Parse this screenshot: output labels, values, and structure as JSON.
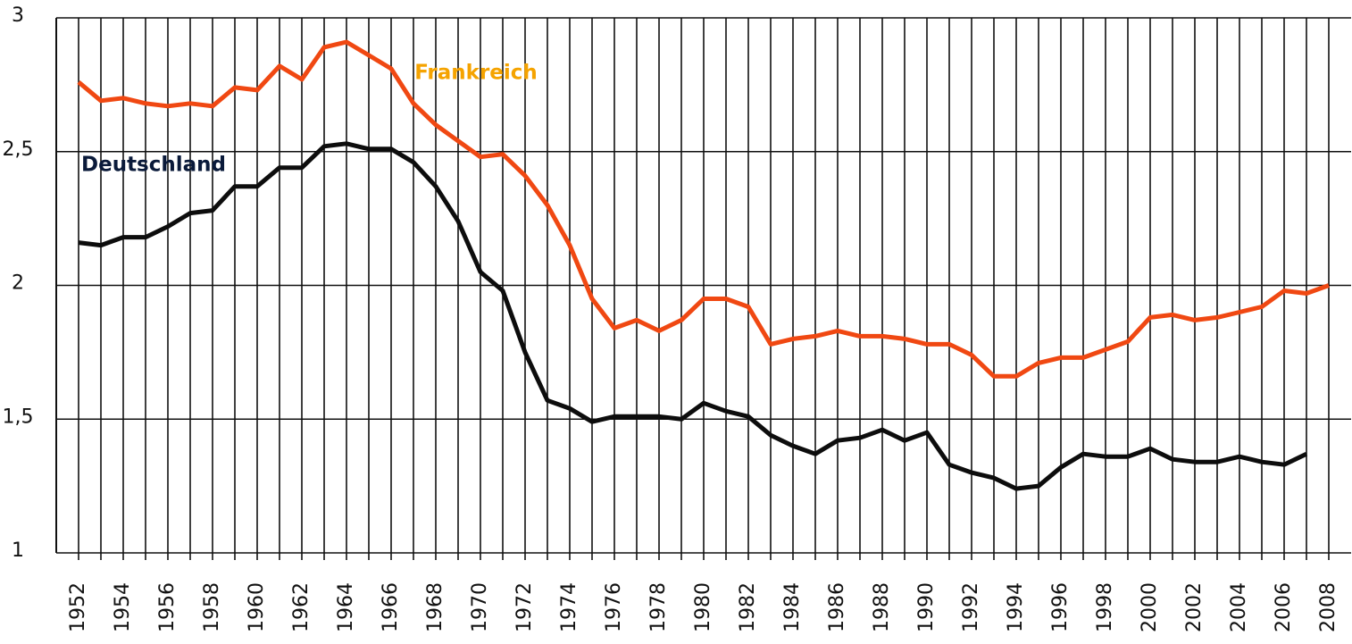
{
  "chart_data": {
    "type": "line",
    "x": [
      1952,
      1953,
      1954,
      1955,
      1956,
      1957,
      1958,
      1959,
      1960,
      1961,
      1962,
      1963,
      1964,
      1965,
      1966,
      1967,
      1968,
      1969,
      1970,
      1971,
      1972,
      1973,
      1974,
      1975,
      1976,
      1977,
      1978,
      1979,
      1980,
      1981,
      1982,
      1983,
      1984,
      1985,
      1986,
      1987,
      1988,
      1989,
      1990,
      1991,
      1992,
      1993,
      1994,
      1995,
      1996,
      1997,
      1998,
      1999,
      2000,
      2001,
      2002,
      2003,
      2004,
      2005,
      2006,
      2007,
      2008
    ],
    "series": [
      {
        "name": "Frankreich",
        "color": "#f04812",
        "label_color": "#f5a300",
        "values": [
          2.76,
          2.69,
          2.7,
          2.68,
          2.67,
          2.68,
          2.67,
          2.74,
          2.73,
          2.82,
          2.77,
          2.89,
          2.91,
          2.86,
          2.81,
          2.68,
          2.6,
          2.54,
          2.48,
          2.49,
          2.41,
          2.3,
          2.15,
          1.95,
          1.84,
          1.87,
          1.83,
          1.87,
          1.95,
          1.95,
          1.92,
          1.78,
          1.8,
          1.81,
          1.83,
          1.81,
          1.81,
          1.8,
          1.78,
          1.78,
          1.74,
          1.66,
          1.66,
          1.71,
          1.73,
          1.73,
          1.76,
          1.79,
          1.88,
          1.89,
          1.87,
          1.88,
          1.9,
          1.92,
          1.98,
          1.97,
          2.0
        ]
      },
      {
        "name": "Deutschland",
        "color": "#0d0d0d",
        "label_color": "#0a1a3a",
        "values": [
          2.16,
          2.15,
          2.18,
          2.18,
          2.22,
          2.27,
          2.28,
          2.37,
          2.37,
          2.44,
          2.44,
          2.52,
          2.53,
          2.51,
          2.51,
          2.46,
          2.37,
          2.24,
          2.05,
          1.98,
          1.75,
          1.57,
          1.54,
          1.49,
          1.51,
          1.51,
          1.51,
          1.5,
          1.56,
          1.53,
          1.51,
          1.44,
          1.4,
          1.37,
          1.42,
          1.43,
          1.46,
          1.42,
          1.45,
          1.33,
          1.3,
          1.28,
          1.24,
          1.25,
          1.32,
          1.37,
          1.36,
          1.36,
          1.39,
          1.35,
          1.34,
          1.34,
          1.36,
          1.34,
          1.33,
          1.37,
          null
        ]
      }
    ],
    "xlim": [
      1951,
      2009
    ],
    "xticks": [
      1952,
      1954,
      1956,
      1958,
      1960,
      1962,
      1964,
      1966,
      1968,
      1970,
      1972,
      1974,
      1976,
      1978,
      1980,
      1982,
      1984,
      1986,
      1988,
      1990,
      1992,
      1994,
      1996,
      1998,
      2000,
      2002,
      2004,
      2006,
      2008
    ],
    "xminorticks": [
      1953,
      1955,
      1957,
      1959,
      1961,
      1963,
      1965,
      1967,
      1969,
      1971,
      1973,
      1975,
      1977,
      1979,
      1981,
      1983,
      1985,
      1987,
      1989,
      1991,
      1993,
      1995,
      1997,
      1999,
      2001,
      2003,
      2005,
      2007
    ],
    "ylim": [
      1,
      3
    ],
    "yticks": [
      1,
      {
        "value": 1.5,
        "label": "1,5"
      },
      2,
      {
        "value": 2.5,
        "label": "2,5"
      },
      3
    ],
    "grid": true
  }
}
